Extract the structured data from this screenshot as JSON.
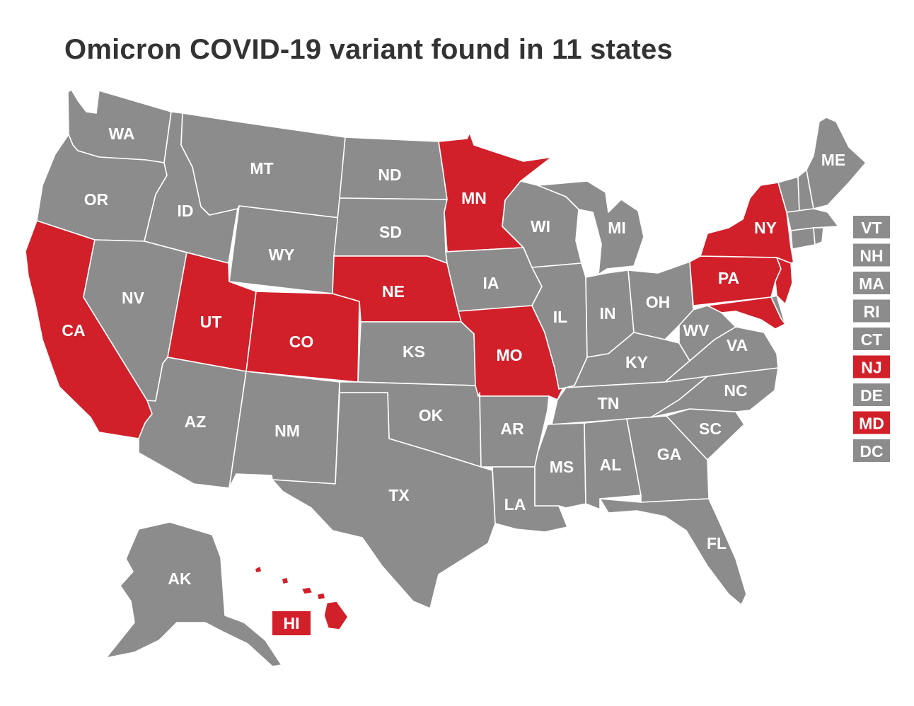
{
  "title": "Omicron COVID-19 variant found in 11 states",
  "colors": {
    "found": "#d1202a",
    "not_found": "#8c8c8c",
    "border": "#ffffff"
  },
  "states": {
    "WA": {
      "label": "WA",
      "found": false
    },
    "OR": {
      "label": "OR",
      "found": false
    },
    "CA": {
      "label": "CA",
      "found": true
    },
    "ID": {
      "label": "ID",
      "found": false
    },
    "NV": {
      "label": "NV",
      "found": false
    },
    "MT": {
      "label": "MT",
      "found": false
    },
    "WY": {
      "label": "WY",
      "found": false
    },
    "UT": {
      "label": "UT",
      "found": true
    },
    "AZ": {
      "label": "AZ",
      "found": false
    },
    "CO": {
      "label": "CO",
      "found": true
    },
    "NM": {
      "label": "NM",
      "found": false
    },
    "ND": {
      "label": "ND",
      "found": false
    },
    "SD": {
      "label": "SD",
      "found": false
    },
    "NE": {
      "label": "NE",
      "found": true
    },
    "KS": {
      "label": "KS",
      "found": false
    },
    "OK": {
      "label": "OK",
      "found": false
    },
    "TX": {
      "label": "TX",
      "found": false
    },
    "MN": {
      "label": "MN",
      "found": true
    },
    "IA": {
      "label": "IA",
      "found": false
    },
    "MO": {
      "label": "MO",
      "found": true
    },
    "AR": {
      "label": "AR",
      "found": false
    },
    "LA": {
      "label": "LA",
      "found": false
    },
    "WI": {
      "label": "WI",
      "found": false
    },
    "IL": {
      "label": "IL",
      "found": false
    },
    "MI": {
      "label": "MI",
      "found": false
    },
    "IN": {
      "label": "IN",
      "found": false
    },
    "OH": {
      "label": "OH",
      "found": false
    },
    "KY": {
      "label": "KY",
      "found": false
    },
    "TN": {
      "label": "TN",
      "found": false
    },
    "MS": {
      "label": "MS",
      "found": false
    },
    "AL": {
      "label": "AL",
      "found": false
    },
    "GA": {
      "label": "GA",
      "found": false
    },
    "FL": {
      "label": "FL",
      "found": false
    },
    "SC": {
      "label": "SC",
      "found": false
    },
    "NC": {
      "label": "NC",
      "found": false
    },
    "VA": {
      "label": "VA",
      "found": false
    },
    "WV": {
      "label": "WV",
      "found": false
    },
    "PA": {
      "label": "PA",
      "found": true
    },
    "NY": {
      "label": "NY",
      "found": true
    },
    "ME": {
      "label": "ME",
      "found": false
    },
    "AK": {
      "label": "AK",
      "found": false
    },
    "HI": {
      "label": "HI",
      "found": true
    }
  },
  "northeast_boxes": [
    {
      "code": "VT",
      "label": "VT",
      "found": false
    },
    {
      "code": "NH",
      "label": "NH",
      "found": false
    },
    {
      "code": "MA",
      "label": "MA",
      "found": false
    },
    {
      "code": "RI",
      "label": "RI",
      "found": false
    },
    {
      "code": "CT",
      "label": "CT",
      "found": false
    },
    {
      "code": "NJ",
      "label": "NJ",
      "found": true
    },
    {
      "code": "DE",
      "label": "DE",
      "found": false
    },
    {
      "code": "MD",
      "label": "MD",
      "found": true
    },
    {
      "code": "DC",
      "label": "DC",
      "found": false
    }
  ]
}
